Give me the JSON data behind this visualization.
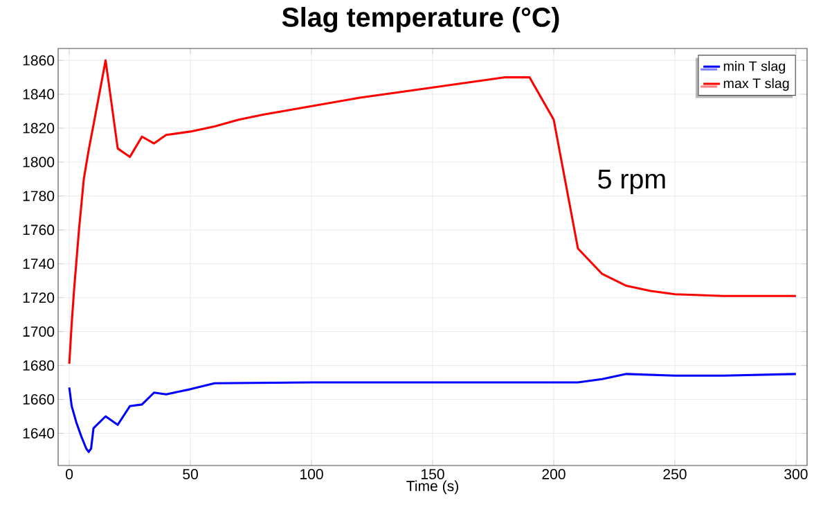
{
  "chart_data": {
    "type": "line",
    "title": "Slag temperature (°C)",
    "xlabel": "Time (s)",
    "annotations": [
      "5 rpm"
    ],
    "xlim": [
      -4.6,
      304.6
    ],
    "ylim": [
      1621,
      1867
    ],
    "xticks": [
      0,
      50,
      100,
      150,
      200,
      250,
      300
    ],
    "yticks": [
      1640,
      1660,
      1680,
      1700,
      1720,
      1740,
      1760,
      1780,
      1800,
      1820,
      1840,
      1860
    ],
    "grid": true,
    "legend": "top right",
    "line_style": "solid",
    "marker": "none",
    "series": [
      {
        "name": "min T slag",
        "color": "#0000ff",
        "x": [
          0,
          1,
          3,
          5,
          7,
          8,
          9,
          10,
          15,
          20,
          25,
          30,
          35,
          40,
          50,
          60,
          100,
          200,
          210,
          220,
          230,
          250,
          270,
          300
        ],
        "values": [
          1667,
          1656,
          1646,
          1638,
          1631,
          1629,
          1631,
          1643,
          1650,
          1645,
          1656,
          1657,
          1664,
          1663,
          1666,
          1669.5,
          1670,
          1670,
          1670,
          1672,
          1675,
          1674,
          1674,
          1675
        ]
      },
      {
        "name": "max T slag",
        "color": "#ff0000",
        "x": [
          0,
          1,
          2,
          4,
          6,
          8,
          10,
          15,
          20,
          25,
          30,
          35,
          40,
          50,
          60,
          70,
          80,
          100,
          120,
          140,
          160,
          180,
          190,
          200,
          210,
          220,
          230,
          240,
          250,
          270,
          290,
          300
        ],
        "values": [
          1681,
          1705,
          1725,
          1760,
          1790,
          1807,
          1822,
          1860,
          1808,
          1803,
          1815,
          1811,
          1816,
          1818,
          1821,
          1825,
          1828,
          1833,
          1838,
          1842,
          1846,
          1850,
          1850,
          1825,
          1749,
          1734,
          1727,
          1724,
          1722,
          1721,
          1721,
          1721
        ]
      }
    ]
  }
}
